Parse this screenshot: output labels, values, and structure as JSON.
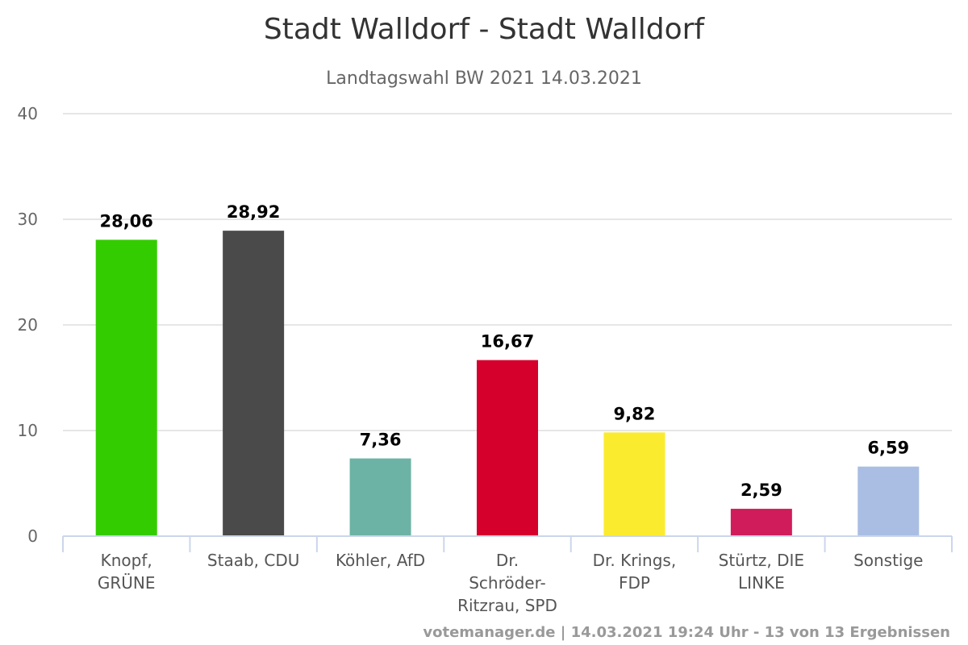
{
  "chart_data": {
    "type": "bar",
    "title": "Stadt Walldorf - Stadt Walldorf",
    "subtitle": "Landtagswahl BW 2021 14.03.2021",
    "categories": [
      [
        "Knopf,",
        "GRÜNE"
      ],
      [
        "Staab, CDU"
      ],
      [
        "Köhler, AfD"
      ],
      [
        "Dr.",
        "Schröder-",
        "Ritzrau, SPD"
      ],
      [
        "Dr. Krings,",
        "FDP"
      ],
      [
        "Stürtz, DIE",
        "LINKE"
      ],
      [
        "Sonstige"
      ]
    ],
    "values": [
      28.06,
      28.92,
      7.36,
      16.67,
      9.82,
      2.59,
      6.59
    ],
    "value_labels": [
      "28,06",
      "28,92",
      "7,36",
      "16,67",
      "9,82",
      "2,59",
      "6,59"
    ],
    "colors": [
      "#33cc00",
      "#4a4a4a",
      "#6db3a5",
      "#d5002b",
      "#fbeb2f",
      "#d01c5a",
      "#aabee3"
    ],
    "ylim": [
      0,
      40
    ],
    "yticks": [
      0,
      10,
      20,
      30,
      40
    ],
    "ytick_labels": [
      "0",
      "10",
      "20",
      "30",
      "40"
    ],
    "grid": true,
    "legend": "none",
    "credit": "votemanager.de | 14.03.2021 19:24 Uhr - 13 von 13 Ergebnissen"
  }
}
